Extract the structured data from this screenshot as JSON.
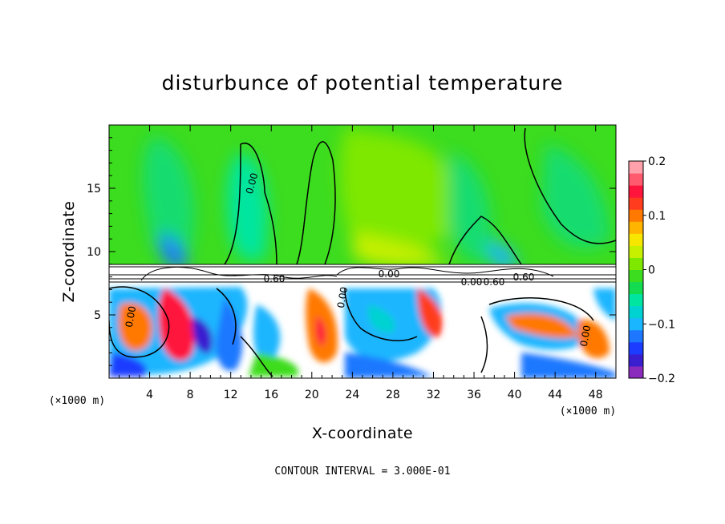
{
  "chart_data": {
    "type": "heatmap",
    "title": "disturbunce of potential temperature",
    "xlabel": "X-coordinate",
    "ylabel": "Z-coordinate",
    "x_unit": "(×1000 m)",
    "z_unit": "(×1000 m)",
    "xlim": [
      0,
      50
    ],
    "zlim": [
      0,
      20
    ],
    "x_ticks": [
      4,
      8,
      12,
      16,
      20,
      24,
      28,
      32,
      36,
      40,
      44,
      48
    ],
    "z_ticks": [
      5,
      10,
      15
    ],
    "colorbar": {
      "range": [
        -0.2,
        0.2
      ],
      "tick_values": [
        0.2,
        0.1,
        0,
        -0.1,
        -0.2
      ],
      "tick_labels": [
        "0.2",
        "0.1",
        "0",
        "−0.1",
        "−0.2"
      ],
      "colors": [
        "#8a2bbd",
        "#3a1fd0",
        "#1c3cff",
        "#1e78ff",
        "#1ab6ff",
        "#00d2d2",
        "#00e6a0",
        "#14dc50",
        "#3cdc1e",
        "#7ee800",
        "#c6f000",
        "#f6e600",
        "#ffb400",
        "#ff7800",
        "#ff3c1e",
        "#ff143c",
        "#ff5a6e",
        "#ffa0aa"
      ]
    },
    "contour_labels": [
      "0.00",
      "0.60",
      "0.60",
      "0.00",
      "0.00",
      "0.60",
      "0.00",
      "0.00",
      "0.00"
    ],
    "contour_interval": "CONTOUR INTERVAL = 3.000E-01"
  }
}
